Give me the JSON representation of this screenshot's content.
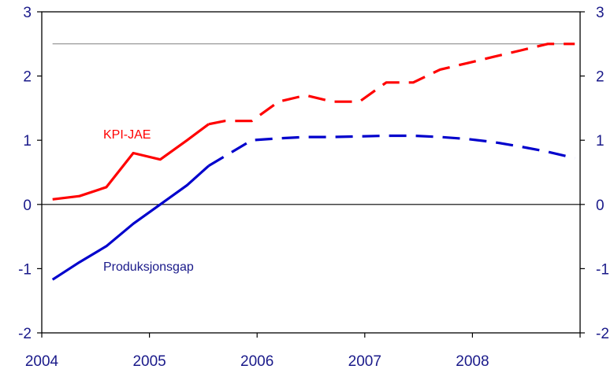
{
  "chart_data": {
    "type": "line",
    "x_ticks": [
      "2004",
      "2005",
      "2006",
      "2007",
      "2008"
    ],
    "y_ticks": [
      "3",
      "2",
      "1",
      "0",
      "-1",
      "-2"
    ],
    "y_ticks_right": [
      "3",
      "2",
      "1",
      "0",
      "-1",
      "-2"
    ],
    "ylim": [
      -2,
      3
    ],
    "xlim": [
      2004.0,
      2009.0
    ],
    "reference_lines": [
      {
        "y": 0,
        "color": "#000000"
      },
      {
        "y": 2.5,
        "color": "#808080"
      }
    ],
    "series": [
      {
        "name": "KPI-JAE",
        "color": "#ff0000",
        "solid": {
          "x": [
            2004.1,
            2004.35,
            2004.6,
            2004.85,
            2005.1,
            2005.35,
            2005.55
          ],
          "y": [
            0.08,
            0.13,
            0.27,
            0.8,
            0.7,
            1.0,
            1.25
          ]
        },
        "dashed": {
          "x": [
            2005.55,
            2005.7,
            2005.95,
            2006.2,
            2006.45,
            2006.7,
            2006.95,
            2007.2,
            2007.45,
            2007.7,
            2007.95,
            2008.2,
            2008.45,
            2008.7,
            2008.95
          ],
          "y": [
            1.25,
            1.3,
            1.3,
            1.6,
            1.7,
            1.6,
            1.6,
            1.9,
            1.9,
            2.1,
            2.2,
            2.3,
            2.4,
            2.5,
            2.5
          ]
        }
      },
      {
        "name": "Produksjonsgap",
        "color": "#0000cc",
        "solid": {
          "x": [
            2004.1,
            2004.35,
            2004.6,
            2004.85,
            2005.1,
            2005.35,
            2005.55
          ],
          "y": [
            -1.17,
            -0.9,
            -0.65,
            -0.3,
            0.0,
            0.3,
            0.6
          ]
        },
        "dashed": {
          "x": [
            2005.55,
            2005.7,
            2005.95,
            2006.2,
            2006.45,
            2006.7,
            2006.95,
            2007.2,
            2007.45,
            2007.7,
            2007.95,
            2008.2,
            2008.45,
            2008.7,
            2008.95
          ],
          "y": [
            0.6,
            0.75,
            1.0,
            1.03,
            1.05,
            1.05,
            1.06,
            1.07,
            1.07,
            1.05,
            1.02,
            0.97,
            0.9,
            0.82,
            0.72
          ]
        }
      }
    ]
  }
}
